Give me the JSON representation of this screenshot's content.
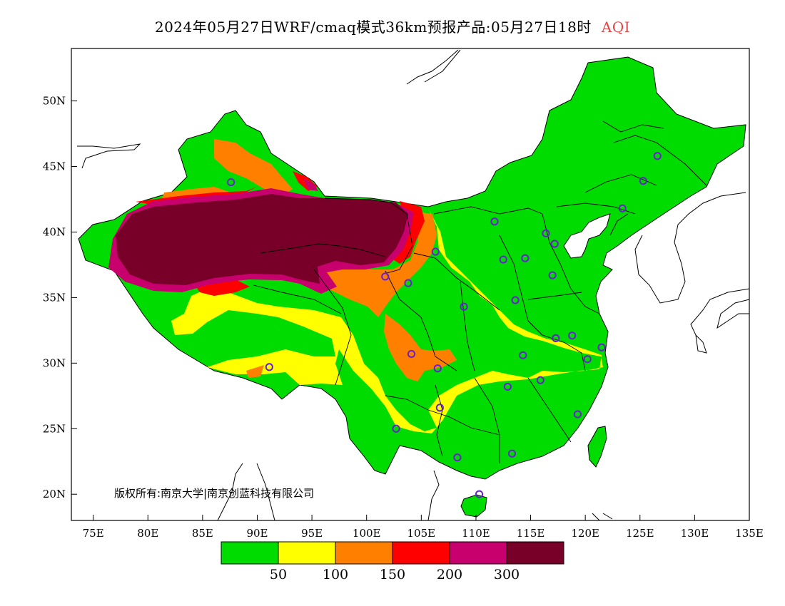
{
  "title": {
    "text": "2024年05月27日WRF/cmaq模式36km预报产品:05月27日18时",
    "indicator": "AQI"
  },
  "axes": {
    "lat_labels": [
      "50N",
      "45N",
      "40N",
      "35N",
      "30N",
      "25N",
      "20N"
    ],
    "lat_values": [
      50,
      45,
      40,
      35,
      30,
      25,
      20
    ],
    "lon_labels": [
      "75E",
      "80E",
      "85E",
      "90E",
      "95E",
      "100E",
      "105E",
      "110E",
      "115E",
      "120E",
      "125E",
      "130E",
      "135E"
    ],
    "lon_values": [
      75,
      80,
      85,
      90,
      95,
      100,
      105,
      110,
      115,
      120,
      125,
      130,
      135
    ],
    "lon_range": [
      73,
      135
    ],
    "lat_range": [
      18,
      54
    ]
  },
  "copyright": "版权所有:南京大学|南京创蓝科技有限公司",
  "colorbar": {
    "colors": [
      "#00dc00",
      "#ffff00",
      "#ff8000",
      "#ff0000",
      "#c8006e",
      "#780028"
    ],
    "labels": [
      "50",
      "100",
      "150",
      "200",
      "300"
    ]
  },
  "stations": [
    [
      87.6,
      43.8
    ],
    [
      91.1,
      29.7
    ],
    [
      101.7,
      36.6
    ],
    [
      103.8,
      36.1
    ],
    [
      106.3,
      38.5
    ],
    [
      104.1,
      30.7
    ],
    [
      106.5,
      29.6
    ],
    [
      108.9,
      34.3
    ],
    [
      106.7,
      26.6
    ],
    [
      102.7,
      25.0
    ],
    [
      108.3,
      22.8
    ],
    [
      110.3,
      20.0
    ],
    [
      113.3,
      23.1
    ],
    [
      112.9,
      28.2
    ],
    [
      114.3,
      30.6
    ],
    [
      115.9,
      28.7
    ],
    [
      117.3,
      31.9
    ],
    [
      118.8,
      32.1
    ],
    [
      120.2,
      30.3
    ],
    [
      121.5,
      31.2
    ],
    [
      119.3,
      26.1
    ],
    [
      113.6,
      34.8
    ],
    [
      117.0,
      36.7
    ],
    [
      114.5,
      38.0
    ],
    [
      112.5,
      37.9
    ],
    [
      111.7,
      40.8
    ],
    [
      116.4,
      39.9
    ],
    [
      117.2,
      39.1
    ],
    [
      123.4,
      41.8
    ],
    [
      125.3,
      43.9
    ],
    [
      126.6,
      45.8
    ]
  ]
}
